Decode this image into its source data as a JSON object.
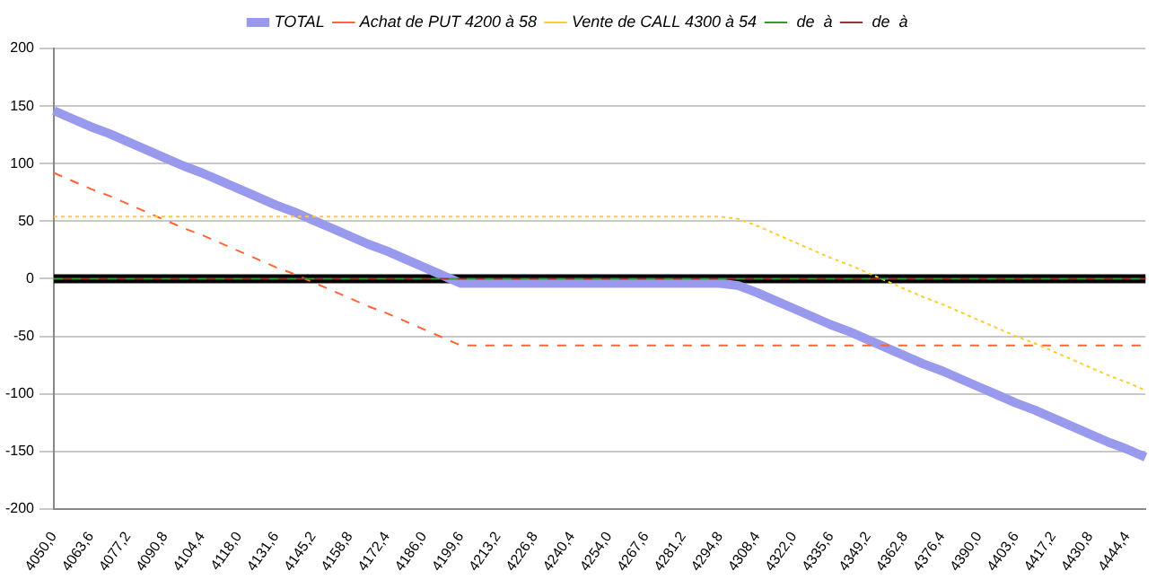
{
  "chart_data": {
    "type": "line",
    "categories": [
      "4050,0",
      null,
      "4063,6",
      null,
      "4077,2",
      null,
      "4090,8",
      null,
      "4104,4",
      null,
      "4118,0",
      null,
      "4131,6",
      null,
      "4145,2",
      null,
      "4158,8",
      null,
      "4172,4",
      null,
      "4186,0",
      null,
      "4199,6",
      null,
      "4213,2",
      null,
      "4226,8",
      null,
      "4240,4",
      null,
      "4254,0",
      null,
      "4267,6",
      null,
      "4281,2",
      null,
      "4294,8",
      null,
      "4308,4",
      null,
      "4322,0",
      null,
      "4335,6",
      null,
      "4349,2",
      null,
      "4362,8",
      null,
      "4376,4",
      null,
      "4390,0",
      null,
      "4403,6",
      null,
      "4417,2",
      null,
      "4430,8",
      null,
      "4444,4",
      null
    ],
    "series": [
      {
        "name": "TOTAL",
        "color": "#9999ee",
        "line_style": "solid",
        "values": [
          146,
          139,
          132,
          126,
          119,
          112,
          105,
          98,
          92,
          85,
          78,
          71,
          64,
          58,
          51,
          44,
          37,
          30,
          24,
          17,
          10,
          3,
          -4,
          -4,
          -4,
          -4,
          -4,
          -4,
          -4,
          -4,
          -4,
          -4,
          -4,
          -4,
          -4,
          -4,
          -4,
          -6,
          -12,
          -19,
          -26,
          -33,
          -40,
          -46,
          -53,
          -60,
          -67,
          -74,
          -80,
          -87,
          -94,
          -101,
          -108,
          -114,
          -121,
          -128,
          -135,
          -142,
          -148,
          -155
        ]
      },
      {
        "name": "Achat de PUT 4200 à 58",
        "color": "#ff6633",
        "line_style": "dashed",
        "values": [
          92,
          85,
          78,
          72,
          65,
          58,
          51,
          44,
          38,
          31,
          24,
          17,
          10,
          4,
          -3,
          -10,
          -17,
          -24,
          -30,
          -37,
          -44,
          -51,
          -58,
          -58,
          -58,
          -58,
          -58,
          -58,
          -58,
          -58,
          -58,
          -58,
          -58,
          -58,
          -58,
          -58,
          -58,
          -58,
          -58,
          -58,
          -58,
          -58,
          -58,
          -58,
          -58,
          -58,
          -58,
          -58,
          -58,
          -58,
          -58,
          -58,
          -58,
          -58,
          -58,
          -58,
          -58,
          -58,
          -58,
          -58
        ]
      },
      {
        "name": "Vente de CALL 4300 à 54",
        "color": "#ffcc33",
        "line_style": "dotted",
        "values": [
          54,
          54,
          54,
          54,
          54,
          54,
          54,
          54,
          54,
          54,
          54,
          54,
          54,
          54,
          54,
          54,
          54,
          54,
          54,
          54,
          54,
          54,
          54,
          54,
          54,
          54,
          54,
          54,
          54,
          54,
          54,
          54,
          54,
          54,
          54,
          54,
          54,
          52,
          46,
          39,
          32,
          25,
          18,
          12,
          5,
          -2,
          -9,
          -16,
          -22,
          -29,
          -36,
          -43,
          -50,
          -56,
          -63,
          -70,
          -77,
          -84,
          -90,
          -97
        ]
      },
      {
        "name": " de  à",
        "color": "#339933",
        "line_style": "dashed",
        "values": [
          0,
          0,
          0,
          0,
          0,
          0,
          0,
          0,
          0,
          0,
          0,
          0,
          0,
          0,
          0,
          0,
          0,
          0,
          0,
          0,
          0,
          0,
          0,
          0,
          0,
          0,
          0,
          0,
          0,
          0,
          0,
          0,
          0,
          0,
          0,
          0,
          0,
          0,
          0,
          0,
          0,
          0,
          0,
          0,
          0,
          0,
          0,
          0,
          0,
          0,
          0,
          0,
          0,
          0,
          0,
          0,
          0,
          0,
          0,
          0
        ]
      },
      {
        "name": " de  à",
        "color": "#993333",
        "line_style": "dashed",
        "values": [
          0,
          0,
          0,
          0,
          0,
          0,
          0,
          0,
          0,
          0,
          0,
          0,
          0,
          0,
          0,
          0,
          0,
          0,
          0,
          0,
          0,
          0,
          0,
          0,
          0,
          0,
          0,
          0,
          0,
          0,
          0,
          0,
          0,
          0,
          0,
          0,
          0,
          0,
          0,
          0,
          0,
          0,
          0,
          0,
          0,
          0,
          0,
          0,
          0,
          0,
          0,
          0,
          0,
          0,
          0,
          0,
          0,
          0,
          0,
          0
        ]
      }
    ],
    "ylim": [
      -200,
      200
    ],
    "yticks": [
      -200,
      -150,
      -100,
      -50,
      0,
      50,
      100,
      150,
      200
    ],
    "grid": "y",
    "legend": "top",
    "marker": "none",
    "ref_lines": [
      {
        "axis": "y",
        "value": 0,
        "color": "#000000"
      }
    ]
  }
}
